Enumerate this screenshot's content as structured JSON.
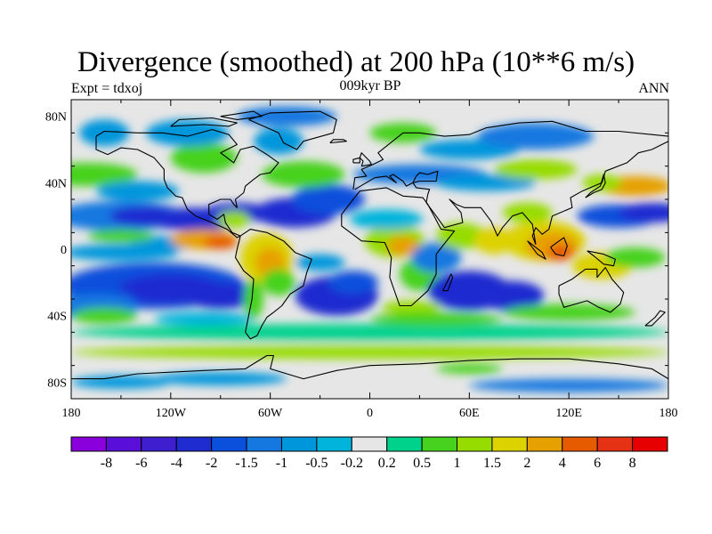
{
  "title": "Divergence (smoothed) at 200 hPa (10**6 m/s)",
  "subtitle_left": "Expt = tdxoj",
  "subtitle_center": "009kyr BP",
  "subtitle_right": "ANN",
  "map": {
    "field": "divergence",
    "lon_range": [
      -180,
      180
    ],
    "lat_range": [
      -90,
      90
    ],
    "lat_ticks": [
      "80N",
      "40N",
      "0",
      "40S",
      "80S"
    ],
    "lon_ticks": [
      "180",
      "120W",
      "60W",
      "0",
      "60E",
      "120E",
      "180"
    ],
    "tick_label_values": {
      "lat": [
        80,
        40,
        0,
        -40,
        -80
      ],
      "lon": [
        -180,
        -120,
        -60,
        0,
        60,
        120,
        180
      ]
    },
    "near_zero_color": "#e6e6e6",
    "features": [
      {
        "name": "east-pacific-convergence",
        "sign": "negative",
        "strength": 4
      },
      {
        "name": "maritime-continent-divergence",
        "sign": "positive",
        "strength": 4
      },
      {
        "name": "amazon-divergence",
        "sign": "positive",
        "strength": 3
      },
      {
        "name": "congo-divergence",
        "sign": "positive",
        "strength": 3
      },
      {
        "name": "south-pacific-convergence",
        "sign": "negative",
        "strength": 4
      },
      {
        "name": "south-atlantic-convergence",
        "sign": "negative",
        "strength": 4
      },
      {
        "name": "south-indian-convergence",
        "sign": "negative",
        "strength": 4
      },
      {
        "name": "southern-ocean-band",
        "sign": "positive",
        "strength": 1
      }
    ]
  },
  "colorbar": {
    "labels": [
      "-8",
      "-6",
      "-4",
      "-2",
      "-1.5",
      "-1",
      "-0.5",
      "-0.2",
      "0.2",
      "0.5",
      "1",
      "1.5",
      "2",
      "4",
      "6",
      "8"
    ],
    "colors": [
      "#8a00dc",
      "#5a0fd8",
      "#3e1fd0",
      "#1e2cd0",
      "#0a50dc",
      "#1478e0",
      "#0096dc",
      "#00b4dc",
      "#e6e6e6",
      "#00d28c",
      "#46d21e",
      "#96dc00",
      "#dcd200",
      "#e6a000",
      "#e65a00",
      "#e63214",
      "#e60000"
    ]
  }
}
